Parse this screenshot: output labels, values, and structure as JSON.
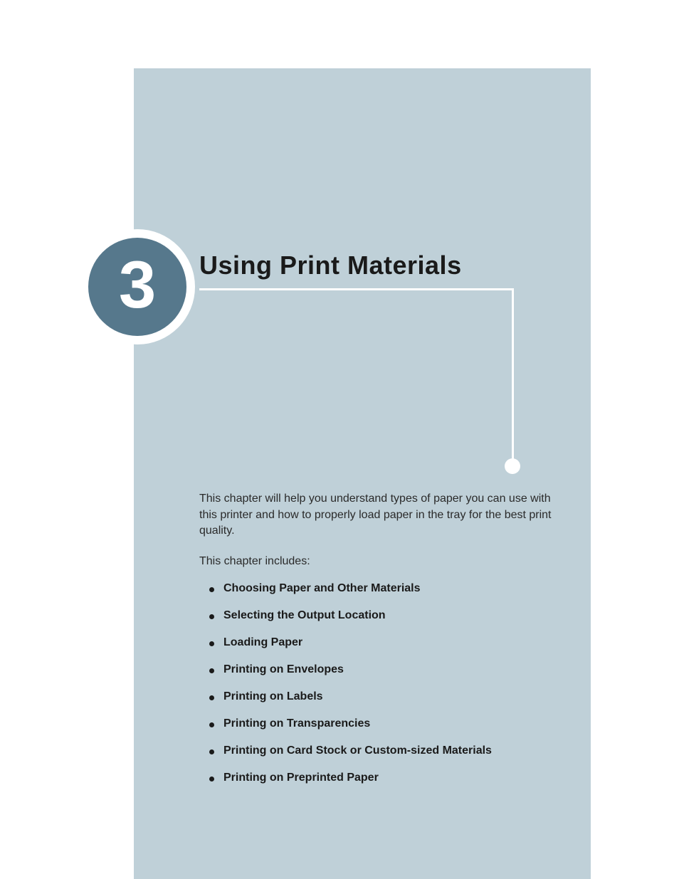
{
  "chapter": {
    "number": "3",
    "title": "Using Print Materials",
    "intro": "This chapter will help you understand types of paper you can use with this printer and how to properly load paper in the tray for the best print quality.",
    "includes_label": "This chapter includes:",
    "topics": [
      "Choosing Paper and Other Materials",
      "Selecting the Output Location",
      "Loading Paper",
      "Printing on Envelopes",
      "Printing on Labels",
      "Printing on Transparencies",
      "Printing on Card Stock or Custom-sized Materials",
      "Printing on Preprinted Paper"
    ]
  },
  "colors": {
    "page_bg": "#ffffff",
    "panel_bg": "#bfd0d8",
    "badge_fill": "#56788c",
    "badge_ring": "#ffffff",
    "rule": "#ffffff",
    "text": "#2a2a2a",
    "heading": "#1a1a1a"
  }
}
